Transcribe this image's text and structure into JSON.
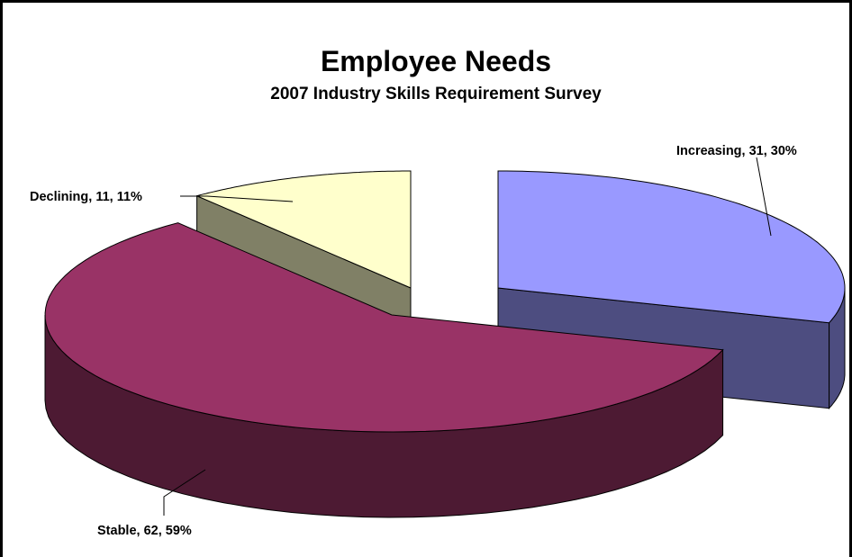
{
  "chart_data": {
    "type": "pie",
    "style": "3d-exploded",
    "title": "Employee Needs",
    "subtitle": "2007 Industry Skills Requirement Survey",
    "slices": [
      {
        "name": "Increasing",
        "value": 31,
        "percent": 30,
        "label": "Increasing, 31, 30%",
        "top_color": "#9999FF",
        "side_color": "#4D4D80"
      },
      {
        "name": "Stable",
        "value": 62,
        "percent": 59,
        "label": "Stable, 62, 59%",
        "top_color": "#993366",
        "side_color": "#4D1A33"
      },
      {
        "name": "Declining",
        "value": 11,
        "percent": 11,
        "label": "Declining, 11, 11%",
        "top_color": "#FFFFCC",
        "side_color": "#808066"
      }
    ]
  }
}
